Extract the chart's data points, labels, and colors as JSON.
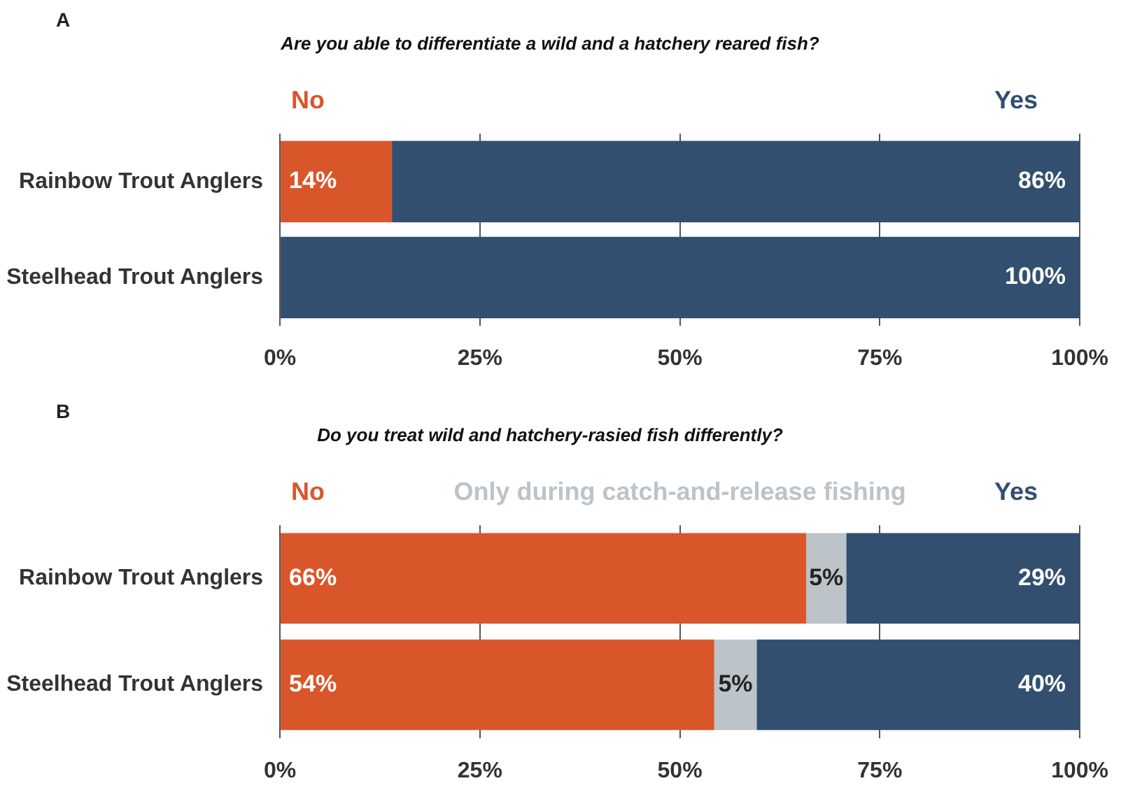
{
  "chart_data": [
    {
      "type": "bar",
      "orientation": "horizontal",
      "stacked": true,
      "title": "Are you able to differentiate a wild and a hatchery reared fish?",
      "annotations": [
        "A"
      ],
      "categories": [
        "Rainbow Trout Anglers",
        "Steelhead Trout Anglers"
      ],
      "series": [
        {
          "name": "No",
          "color": "#d9562a",
          "values": [
            14,
            0
          ],
          "value_labels": [
            "14%",
            null
          ]
        },
        {
          "name": "Yes",
          "color": "#324f70",
          "values": [
            86,
            100
          ],
          "value_labels": [
            "86%",
            "100%"
          ]
        }
      ],
      "xlim": [
        0,
        100
      ],
      "xticks": [
        {
          "value": 0,
          "label": "0%"
        },
        {
          "value": 25,
          "label": "25%"
        },
        {
          "value": 50,
          "label": "50%"
        },
        {
          "value": 75,
          "label": "75%"
        },
        {
          "value": 100,
          "label": "100%"
        }
      ],
      "grid": "x",
      "legend": "top"
    },
    {
      "type": "bar",
      "orientation": "horizontal",
      "stacked": true,
      "title": "Do you treat wild and hatchery-rasied fish differently?",
      "annotations": [
        "B"
      ],
      "categories": [
        "Rainbow Trout Anglers",
        "Steelhead Trout Anglers"
      ],
      "series": [
        {
          "name": "No",
          "color": "#d9562a",
          "values": [
            65.8,
            54.3
          ],
          "value_labels": [
            "66%",
            "54%"
          ]
        },
        {
          "name": "Only during catch-and-release fishing",
          "color": "#bcc3c9",
          "values": [
            5,
            5.3
          ],
          "value_labels": [
            "5%",
            "5%"
          ]
        },
        {
          "name": "Yes",
          "color": "#324f70",
          "values": [
            29.2,
            40.4
          ],
          "value_labels": [
            "29%",
            "40%"
          ]
        }
      ],
      "xlim": [
        0,
        100
      ],
      "xticks": [
        {
          "value": 0,
          "label": "0%"
        },
        {
          "value": 25,
          "label": "25%"
        },
        {
          "value": 50,
          "label": "50%"
        },
        {
          "value": 75,
          "label": "75%"
        },
        {
          "value": 100,
          "label": "100%"
        }
      ],
      "grid": "x",
      "legend": "top"
    }
  ]
}
